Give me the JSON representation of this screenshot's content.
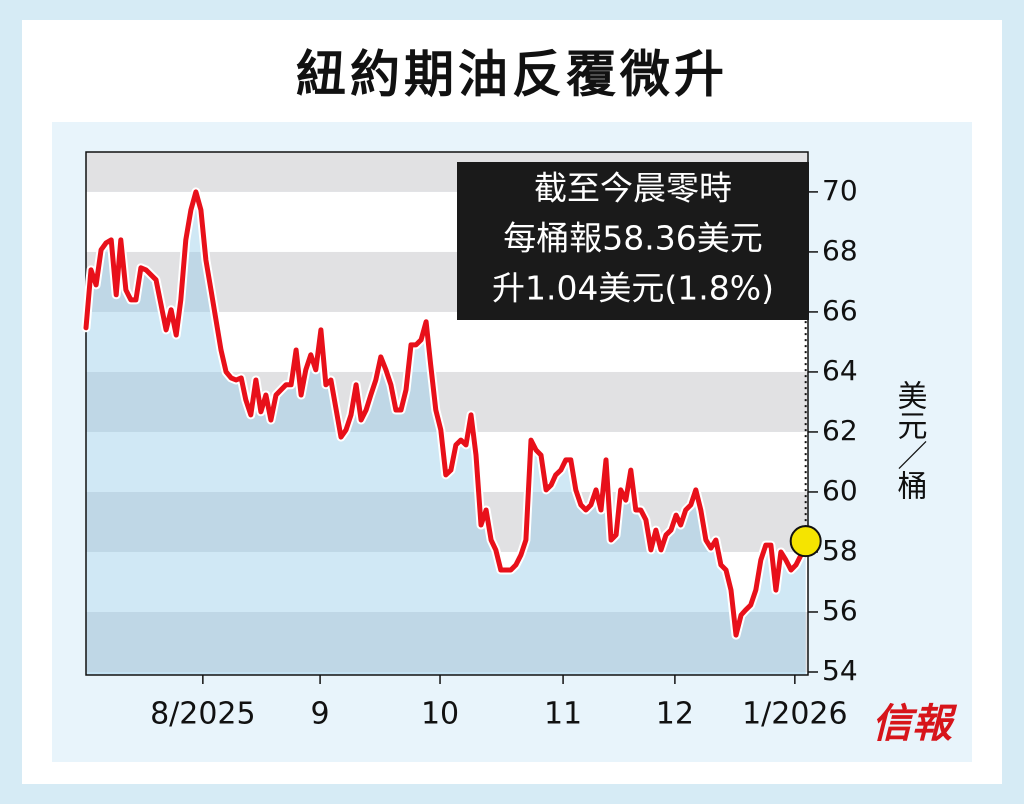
{
  "chart_data": {
    "type": "line",
    "title": "紐約期油反覆微升",
    "ylabel": "美元／桶",
    "annotation": [
      "截至今晨零時",
      "每桶報58.36美元",
      "升1.04美元(1.8%)"
    ],
    "logo": "信報",
    "color": "#e8101a",
    "marker_color": "#f5e400",
    "xlim": [
      0,
      186.6
    ],
    "xticks": [
      {
        "value": 30.2,
        "label": "8/2025"
      },
      {
        "value": 60.5,
        "label": "9"
      },
      {
        "value": 91.5,
        "label": "10"
      },
      {
        "value": 123.3,
        "label": "11"
      },
      {
        "value": 152.2,
        "label": "12"
      },
      {
        "value": 183.2,
        "label": "1/2026"
      }
    ],
    "ylim": [
      53.9,
      71.33
    ],
    "yticks": [
      54,
      56,
      58,
      60,
      62,
      64,
      66,
      68,
      70
    ],
    "x": [
      0,
      1.3,
      2.6,
      3.9,
      5.2,
      6.5,
      7.8,
      9.0,
      10.3,
      11.6,
      12.9,
      14.2,
      15.5,
      18.1,
      20.7,
      22.0,
      23.3,
      24.5,
      25.8,
      27.1,
      28.4,
      29.7,
      31.0,
      32.3,
      33.6,
      34.9,
      36.2,
      37.5,
      38.8,
      40.1,
      41.3,
      42.6,
      43.9,
      45.2,
      46.5,
      47.8,
      49.1,
      50.4,
      51.7,
      53.0,
      54.3,
      55.6,
      56.8,
      58.1,
      59.4,
      60.7,
      62.0,
      63.3,
      65.9,
      67.2,
      68.5,
      69.8,
      71.1,
      72.4,
      73.6,
      74.9,
      76.2,
      77.5,
      78.8,
      80.1,
      81.4,
      82.7,
      84.0,
      85.3,
      86.6,
      87.9,
      89.1,
      90.4,
      91.7,
      93.0,
      94.3,
      95.6,
      96.9,
      98.2,
      99.5,
      100.8,
      102.1,
      103.4,
      104.7,
      105.9,
      107.2,
      108.5,
      109.8,
      111.1,
      112.4,
      113.7,
      115.0,
      116.3,
      117.6,
      118.9,
      120.2,
      121.4,
      122.7,
      124.0,
      125.3,
      126.6,
      127.9,
      129.2,
      130.5,
      131.8,
      133.1,
      134.4,
      135.7,
      137.0,
      138.2,
      139.5,
      140.8,
      142.1,
      143.4,
      144.7,
      146.0,
      147.3,
      148.6,
      149.9,
      151.2,
      152.5,
      153.7,
      155.0,
      156.3,
      157.6,
      158.9,
      160.2,
      161.5,
      162.8,
      164.1,
      165.4,
      166.7,
      168.0,
      169.3,
      170.5,
      171.8,
      173.1,
      174.4,
      175.7,
      177.0,
      178.3,
      179.6,
      180.9,
      182.2,
      183.5,
      184.8,
      186.0
    ],
    "values": [
      65.47,
      67.4,
      66.9,
      68.07,
      68.3,
      68.4,
      66.57,
      68.4,
      66.73,
      66.4,
      66.4,
      67.47,
      67.4,
      67.07,
      65.4,
      66.07,
      65.23,
      66.4,
      68.4,
      69.4,
      70.0,
      69.4,
      67.73,
      66.73,
      65.73,
      64.73,
      64.0,
      63.8,
      63.73,
      63.8,
      63.07,
      62.57,
      63.73,
      62.67,
      63.23,
      62.4,
      63.23,
      63.4,
      63.57,
      63.57,
      64.73,
      63.23,
      64.07,
      64.57,
      64.07,
      65.4,
      63.57,
      63.73,
      61.83,
      62.07,
      62.57,
      63.57,
      62.4,
      62.73,
      63.23,
      63.73,
      64.5,
      64.07,
      63.57,
      62.73,
      62.73,
      63.4,
      64.9,
      64.9,
      65.07,
      65.67,
      64.23,
      62.73,
      62.07,
      60.57,
      60.73,
      61.57,
      61.73,
      61.57,
      62.57,
      61.23,
      58.9,
      59.4,
      58.4,
      58.07,
      57.4,
      57.4,
      57.4,
      57.57,
      57.9,
      58.4,
      61.73,
      61.4,
      61.23,
      60.07,
      60.23,
      60.57,
      60.73,
      61.07,
      61.07,
      60.07,
      59.57,
      59.4,
      59.57,
      60.07,
      59.4,
      61.07,
      58.4,
      58.57,
      60.07,
      59.73,
      60.73,
      59.4,
      59.4,
      59.07,
      58.07,
      58.73,
      58.07,
      58.57,
      58.73,
      59.23,
      58.9,
      59.4,
      59.57,
      60.07,
      59.4,
      58.4,
      58.13,
      58.4,
      57.57,
      57.4,
      56.73,
      55.23,
      55.9,
      56.07,
      56.23,
      56.73,
      57.73,
      58.23,
      58.23,
      56.73,
      58.0,
      57.73,
      57.4,
      57.57,
      57.9,
      58.36
    ]
  }
}
